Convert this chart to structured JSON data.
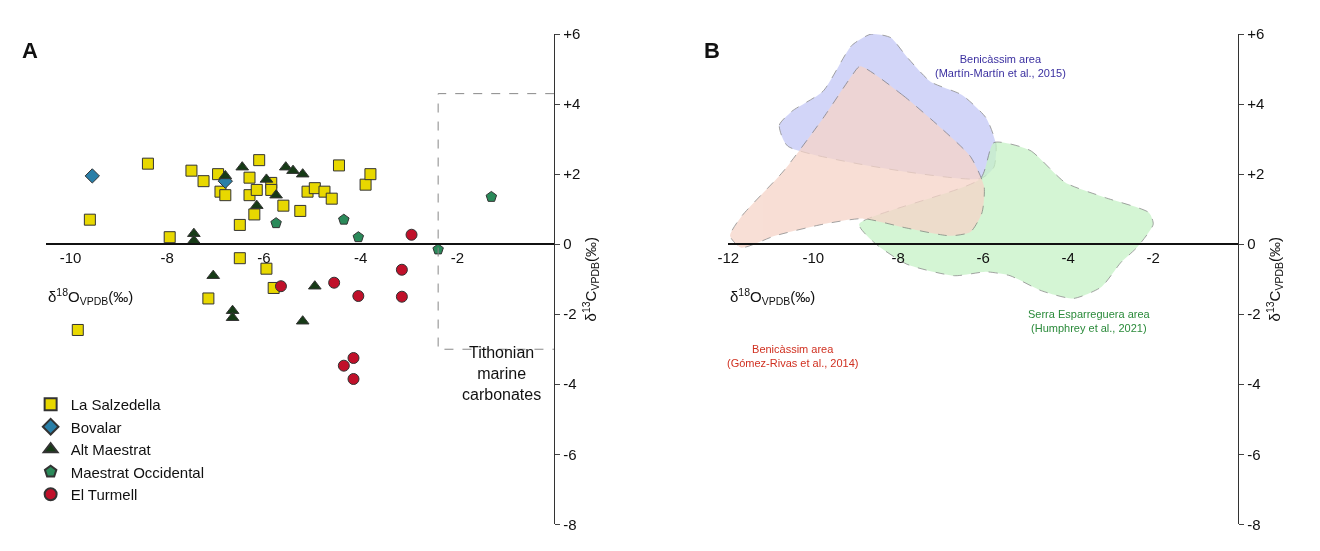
{
  "chart_data": [
    {
      "type": "scatter",
      "title": "A",
      "xlabel": "δ$^{18}$O$_{VPDB}$(‰)",
      "ylabel": "δ$^{13}$C$_{VPDB}$(‰)",
      "xlim": [
        -10.5,
        0
      ],
      "ylim": [
        -8,
        6
      ],
      "xticks": [
        -10,
        -8,
        -6,
        -4,
        -2
      ],
      "yticks": [
        {
          "value": 6,
          "label": "+6"
        },
        {
          "value": 4,
          "label": "+4"
        },
        {
          "value": 2,
          "label": "+2"
        },
        0,
        -2,
        -4,
        -6,
        -8
      ],
      "legend": "bottom left",
      "series": [
        {
          "name": "La Salzedella",
          "color": "#e8d800",
          "marker": "square",
          "x": [
            -8.4,
            -7.5,
            -7.25,
            -6.95,
            -6.9,
            -6.8,
            -6.3,
            -6.1,
            -6.3,
            -6.15,
            -5.85,
            -5.85,
            -5.6,
            -5.25,
            -6.2,
            -6.5,
            -5.1,
            -4.95,
            -4.75,
            -4.6,
            -4.45,
            -3.9,
            -3.8,
            -9.6,
            -7.95,
            -6.5,
            -5.95,
            -5.8,
            -7.15,
            -9.85
          ],
          "values": [
            2.3,
            2.1,
            1.8,
            2.0,
            1.5,
            1.4,
            1.9,
            2.4,
            1.4,
            1.55,
            1.75,
            1.55,
            1.1,
            0.95,
            0.85,
            0.55,
            1.5,
            1.6,
            1.5,
            1.3,
            2.25,
            1.7,
            2.0,
            0.7,
            0.2,
            -0.4,
            -0.7,
            -1.25,
            -1.55,
            -2.45
          ]
        },
        {
          "name": "Bovalar",
          "color": "#2a7fa8",
          "marker": "diamond",
          "x": [
            -9.55,
            -6.8
          ],
          "values": [
            1.95,
            1.8
          ]
        },
        {
          "name": "Alt Maestrat",
          "color": "#163a16",
          "marker": "triangle",
          "x": [
            -6.45,
            -6.8,
            -5.95,
            -5.75,
            -5.55,
            -5.4,
            -5.2,
            -6.15,
            -7.45,
            -7.45,
            -7.05,
            -6.65,
            -6.65,
            -4.95,
            -5.2
          ],
          "values": [
            2.2,
            1.95,
            1.85,
            1.4,
            2.2,
            2.1,
            2.0,
            1.1,
            0.3,
            0.1,
            -0.9,
            -1.9,
            -2.1,
            -1.2,
            -2.2
          ]
        },
        {
          "name": "Maestrat Occidental",
          "color": "#2a8a5a",
          "x": [
            -5.75,
            -4.35,
            -4.05,
            -2.4,
            -1.3
          ],
          "values": [
            0.6,
            0.7,
            0.2,
            -0.15,
            1.35
          ]
        },
        {
          "name": "El Turmell",
          "color": "#c0102a",
          "marker": "circle",
          "x": [
            -2.95,
            -3.15,
            -4.55,
            -5.65,
            -4.05,
            -3.15,
            -4.15,
            -4.35,
            -4.15
          ],
          "values": [
            0.27,
            -0.73,
            -1.1,
            -1.2,
            -1.48,
            -1.5,
            -3.25,
            -3.47,
            -3.85
          ]
        },
        {
          "type": "line",
          "color": "#888888",
          "line_style": "dashed",
          "marker": "none",
          "x": [
            0,
            -2.4,
            -2.4,
            0
          ],
          "values": [
            4.3,
            4.3,
            -3,
            -3
          ]
        }
      ],
      "annotations": [
        "Tithonian\nmarine\ncarbonates"
      ]
    },
    {
      "type": "area",
      "title": "B",
      "xlabel": "δ$^{18}$O$_{VPDB}$(‰)",
      "ylabel": "δ$^{13}$C$_{VPDB}$(‰)",
      "xlim": [
        -12,
        0
      ],
      "ylim": [
        -8,
        6
      ],
      "xticks": [
        -12,
        -10,
        -8,
        -6,
        -4,
        -2
      ],
      "yticks": [
        {
          "value": 6,
          "label": "+6"
        },
        {
          "value": 4,
          "label": "+4"
        },
        {
          "value": 2,
          "label": "+2"
        },
        0,
        -2,
        -4,
        -6,
        -8
      ],
      "series": [
        {
          "color": "#c4c8f6",
          "x": [
            -10.6,
            -10.8,
            -10.5,
            -9.77,
            -9.1,
            -8.64,
            -8.18,
            -7.8,
            -7.24,
            -6.5,
            -5.93,
            -5.7,
            -5.75,
            -6.07,
            -10.6
          ],
          "values": [
            2.8,
            3.4,
            3.8,
            4.37,
            5.67,
            6.0,
            5.9,
            5.35,
            4.64,
            4.26,
            3.6,
            2.85,
            2.2,
            1.87,
            2.8
          ]
        },
        {
          "color": "#c6f2c6",
          "x": [
            -5.75,
            -4.9,
            -4.07,
            -3.13,
            -2.1,
            -2.0,
            -2.38,
            -2.76,
            -3.22,
            -3.88,
            -4.63,
            -5.37,
            -5.93,
            -6.68,
            -7.8,
            -8.55,
            -8.92,
            -6.07,
            -5.75
          ],
          "values": [
            2.9,
            2.68,
            1.76,
            1.33,
            0.9,
            0.57,
            -0.09,
            -0.52,
            -1.22,
            -1.55,
            -1.33,
            -0.9,
            -0.79,
            -0.9,
            -0.57,
            0.03,
            0.57,
            1.87,
            2.9
          ]
        },
        {
          "color": "#f6d4c8",
          "x": [
            -8.9,
            -7.9,
            -6.96,
            -6.3,
            -5.98,
            -6.03,
            -6.3,
            -6.78,
            -7.8,
            -8.83,
            -9.77,
            -10.9,
            -11.7,
            -11.96,
            -11.7,
            -10.7,
            -9.77,
            -9.1,
            -8.9
          ],
          "values": [
            5.08,
            4.26,
            3.28,
            2.5,
            1.65,
            0.9,
            0.35,
            0.24,
            0.46,
            0.73,
            0.57,
            0.24,
            -0.1,
            0.24,
            0.78,
            2.09,
            3.6,
            4.8,
            5.08
          ]
        }
      ],
      "annotations": [
        "Benicàssim area\n(Martín-Martín et al., 2015)",
        "Serra Esparreguera area\n(Humphrey et al., 2021)",
        "Benicàssim area\n(Gómez-Rivas et al., 2014)"
      ]
    }
  ]
}
